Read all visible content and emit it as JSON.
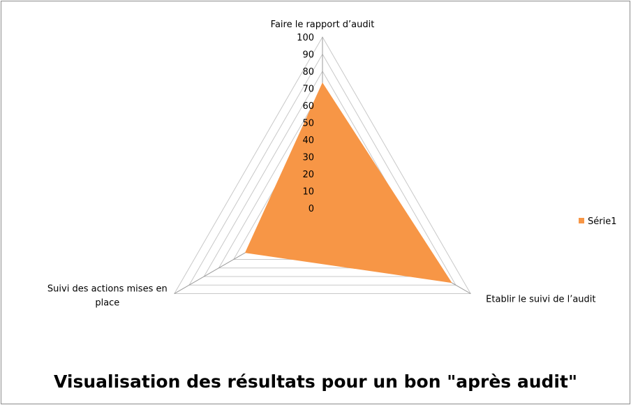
{
  "chart_data": {
    "type": "radar",
    "title": "Visualisation des résultats pour un bon \"après audit\"",
    "categories": [
      "Faire le rapport d’audit",
      "Etablir le suivi de l’audit",
      "Suivi des actions mises en place"
    ],
    "category_label_lines": [
      [
        "Faire le rapport d’audit"
      ],
      [
        "Etablir le suivi de l’audit"
      ],
      [
        "Suivi des actions mises en",
        "place"
      ]
    ],
    "series": [
      {
        "name": "Série1",
        "values": [
          73,
          87,
          52
        ]
      }
    ],
    "rlim": [
      0,
      100
    ],
    "ticks": [
      0,
      10,
      20,
      30,
      40,
      50,
      60,
      70,
      80,
      90,
      100
    ],
    "grid": true,
    "legend_position": "right",
    "colors": {
      "series": "#f79646",
      "grid": "#c8c8c8",
      "axis": "#999999"
    }
  }
}
